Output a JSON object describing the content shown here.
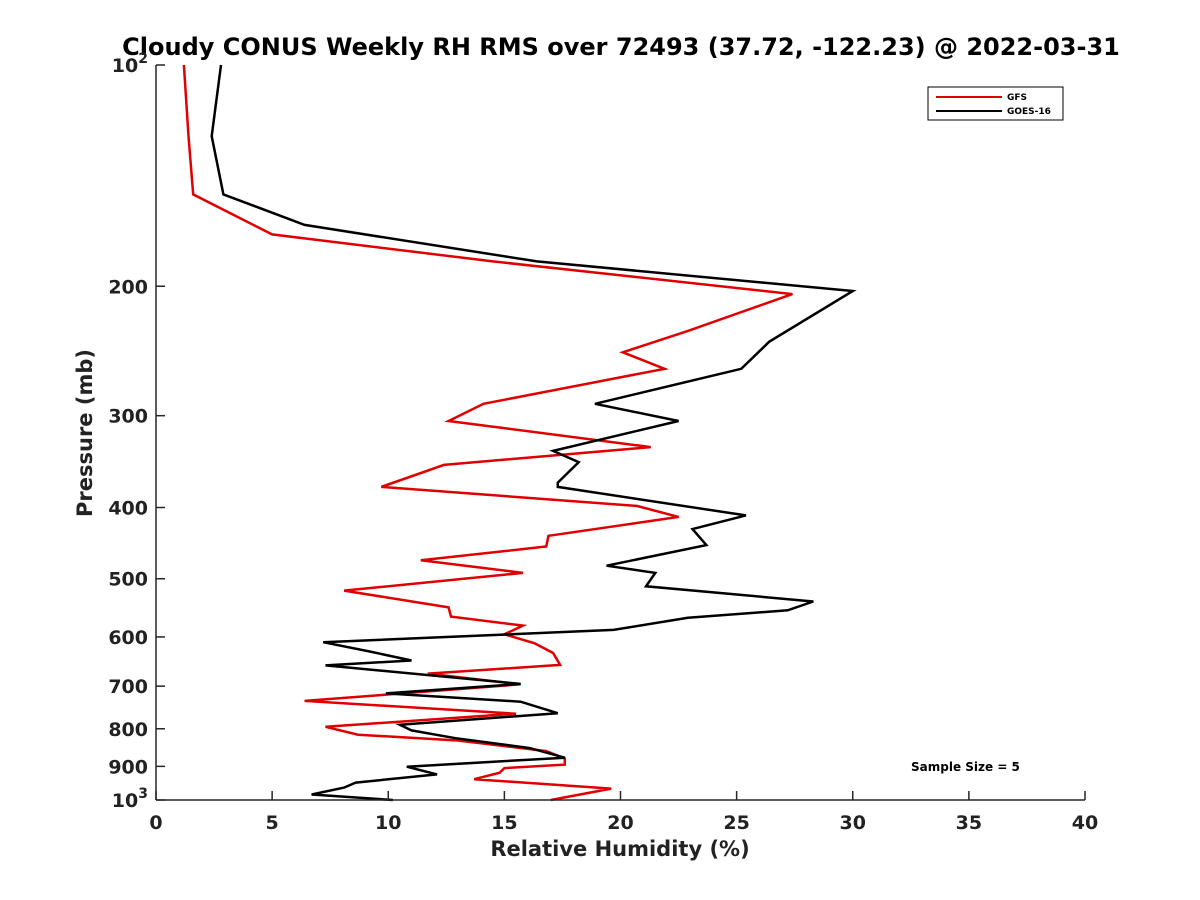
{
  "chart_data": {
    "type": "line",
    "title": "Cloudy CONUS Weekly RH RMS over 72493 (37.72, -122.23) @ 2022-03-31",
    "xlabel": "Relative Humidity (%)",
    "ylabel": "Pressure (mb)",
    "xlim": [
      0,
      40
    ],
    "ylim": [
      1000,
      100
    ],
    "yscale": "log",
    "y_reversed": true,
    "x_ticks": [
      "0",
      "5",
      "10",
      "15",
      "20",
      "25",
      "30",
      "35",
      "40"
    ],
    "y_ticks": [
      {
        "value": 100,
        "base": "10",
        "exp": "2"
      },
      {
        "value": 200,
        "base": "200",
        "exp": ""
      },
      {
        "value": 300,
        "base": "300",
        "exp": ""
      },
      {
        "value": 400,
        "base": "400",
        "exp": ""
      },
      {
        "value": 500,
        "base": "500",
        "exp": ""
      },
      {
        "value": 600,
        "base": "600",
        "exp": ""
      },
      {
        "value": 700,
        "base": "700",
        "exp": ""
      },
      {
        "value": 800,
        "base": "800",
        "exp": ""
      },
      {
        "value": 900,
        "base": "900",
        "exp": ""
      },
      {
        "value": 1000,
        "base": "10",
        "exp": "3"
      }
    ],
    "grid": false,
    "legend_position": "top-right",
    "annotation": "Sample Size = 5",
    "series": [
      {
        "name": "GFS",
        "color": "#e00000",
        "points": [
          [
            1.2,
            100
          ],
          [
            1.4,
            125
          ],
          [
            1.6,
            150
          ],
          [
            5.0,
            170
          ],
          [
            14.5,
            185
          ],
          [
            27.4,
            205
          ],
          [
            22.9,
            230
          ],
          [
            20.1,
            246
          ],
          [
            21.9,
            259
          ],
          [
            14.1,
            289
          ],
          [
            12.6,
            305
          ],
          [
            21.3,
            331
          ],
          [
            12.4,
            350
          ],
          [
            9.7,
            375
          ],
          [
            20.7,
            398
          ],
          [
            22.5,
            412
          ],
          [
            16.9,
            437
          ],
          [
            16.8,
            452
          ],
          [
            11.4,
            472
          ],
          [
            15.8,
            491
          ],
          [
            8.1,
            519
          ],
          [
            12.6,
            547
          ],
          [
            12.7,
            563
          ],
          [
            15.8,
            579
          ],
          [
            15.0,
            595
          ],
          [
            16.3,
            612
          ],
          [
            17.1,
            631
          ],
          [
            17.4,
            655
          ],
          [
            11.7,
            673
          ],
          [
            15.7,
            696
          ],
          [
            6.4,
            733
          ],
          [
            15.5,
            763
          ],
          [
            7.3,
            795
          ],
          [
            8.7,
            815
          ],
          [
            13.0,
            830
          ],
          [
            16.8,
            858
          ],
          [
            17.6,
            878
          ],
          [
            17.6,
            895
          ],
          [
            15.0,
            905
          ],
          [
            14.8,
            918
          ],
          [
            13.7,
            937
          ],
          [
            19.6,
            965
          ],
          [
            17.0,
            1000
          ]
        ]
      },
      {
        "name": "GOES-16",
        "color": "#000000",
        "points": [
          [
            2.8,
            100
          ],
          [
            2.4,
            125
          ],
          [
            2.9,
            150
          ],
          [
            6.4,
            165
          ],
          [
            16.4,
            185
          ],
          [
            30.0,
            203
          ],
          [
            26.4,
            238
          ],
          [
            25.2,
            259
          ],
          [
            18.9,
            289
          ],
          [
            22.5,
            305
          ],
          [
            17.1,
            335
          ],
          [
            18.2,
            347
          ],
          [
            17.3,
            370
          ],
          [
            17.3,
            375
          ],
          [
            25.4,
            410
          ],
          [
            23.1,
            428
          ],
          [
            23.7,
            450
          ],
          [
            19.4,
            480
          ],
          [
            21.5,
            491
          ],
          [
            21.1,
            512
          ],
          [
            28.3,
            537
          ],
          [
            27.2,
            552
          ],
          [
            22.9,
            565
          ],
          [
            19.7,
            587
          ],
          [
            7.2,
            610
          ],
          [
            9.2,
            628
          ],
          [
            11.0,
            646
          ],
          [
            7.3,
            656
          ],
          [
            15.7,
            695
          ],
          [
            9.9,
            716
          ],
          [
            15.7,
            735
          ],
          [
            17.3,
            762
          ],
          [
            10.5,
            790
          ],
          [
            11.0,
            804
          ],
          [
            12.9,
            824
          ],
          [
            16.1,
            850
          ],
          [
            17.6,
            876
          ],
          [
            10.8,
            901
          ],
          [
            12.1,
            923
          ],
          [
            8.6,
            947
          ],
          [
            8.1,
            962
          ],
          [
            6.7,
            983
          ],
          [
            10.2,
            1000
          ]
        ]
      }
    ]
  }
}
